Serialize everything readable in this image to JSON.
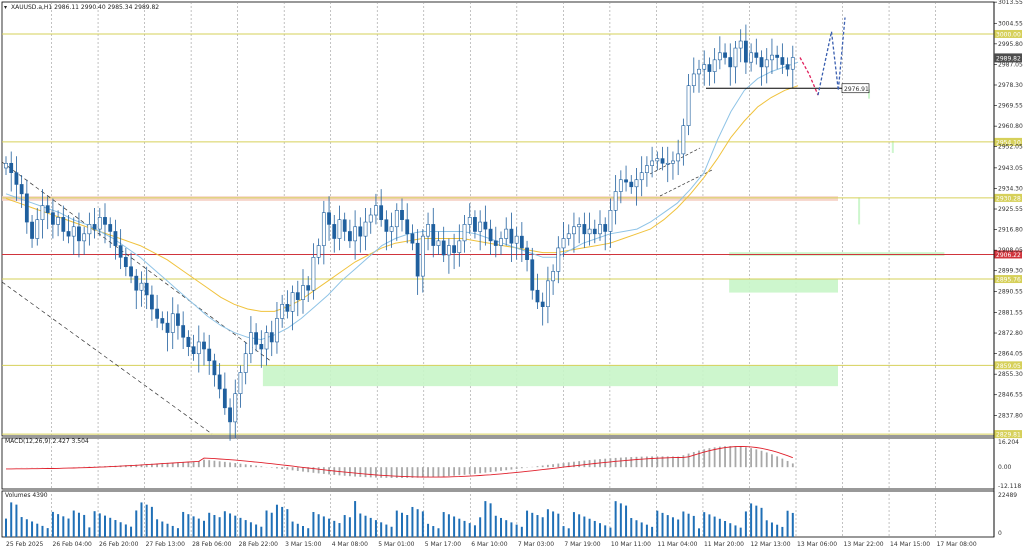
{
  "colors": {
    "background": "#ffffff",
    "candle": "#1f5f9e",
    "ma_fast": "#8ec3e6",
    "ma_slow": "#f0c23c",
    "zone_green": "#c8f5c8",
    "zone_pink": "#f5d0c4",
    "level_yellow": "#d6d05a",
    "level_red": "#d0343c",
    "macd_signal": "#e0202c",
    "macd_hist": "#a8a8a8",
    "volume": "#1f6fb6",
    "projection_red": "#e0205c",
    "projection_blue": "#3a5fb0",
    "price_tag_dark": "#4d4d4d"
  },
  "chart_data": {
    "type": "candlestick",
    "symbol_header": "XAUUSD.a,H1  2986.11 2990.40 2985.34 2989.82",
    "price_axis": {
      "ylim": [
        2829.0,
        3013.6
      ],
      "ticks": [
        "3013.55",
        "3004.55",
        "2995.80",
        "2987.05",
        "2978.30",
        "2969.55",
        "2960.80",
        "2952.05",
        "2943.05",
        "2934.30",
        "2925.55",
        "2916.80",
        "2908.05",
        "2899.30",
        "2890.55",
        "2881.55",
        "2872.80",
        "2864.05",
        "2855.30",
        "2846.55",
        "2837.80"
      ]
    },
    "time_labels": [
      "25 Feb 2025",
      "26 Feb 04:00",
      "26 Feb 20:00",
      "27 Feb 13:00",
      "28 Feb 06:00",
      "28 Feb 22:00",
      "3 Mar 15:00",
      "4 Mar 08:00",
      "5 Mar 01:00",
      "5 Mar 17:00",
      "6 Mar 10:00",
      "7 Mar 03:00",
      "7 Mar 19:00",
      "10 Mar 11:00",
      "11 Mar 04:00",
      "11 Mar 20:00",
      "12 Mar 13:00",
      "13 Mar 06:00",
      "13 Mar 22:00",
      "14 Mar 15:00",
      "17 Mar 08:00"
    ],
    "levels": [
      {
        "price": 3000.0,
        "label": "3000.00",
        "style": "yellow"
      },
      {
        "price": 2954.1,
        "label": "2954.10",
        "style": "yellow"
      },
      {
        "price": 2930.28,
        "label": "2930.28",
        "style": "yellow"
      },
      {
        "price": 2906.22,
        "label": "2906.22",
        "style": "red"
      },
      {
        "price": 2895.76,
        "label": "2895.76",
        "style": "yellow"
      },
      {
        "price": 2859.05,
        "label": "2859.05",
        "style": "yellow"
      },
      {
        "price": 2829.81,
        "label": "2829.81",
        "style": "yellow"
      }
    ],
    "current_price": "2989.82",
    "target_label": "2976.91",
    "target_price": 2976.91,
    "zones": [
      {
        "x_start": 0.0,
        "x_end": 1.0,
        "top": 2931.0,
        "bottom": 2929.0,
        "color": "pink"
      },
      {
        "x_start": 0.263,
        "x_end": 1.0,
        "top": 2859.0,
        "bottom": 2850.2,
        "color": "green"
      },
      {
        "x_start": 0.733,
        "x_end": 1.0,
        "top": 2896.0,
        "bottom": 2890.0,
        "color": "green"
      },
      {
        "x_start": 0.733,
        "x_end": 0.95,
        "top": 2907.2,
        "bottom": 2905.6,
        "color": "green"
      },
      {
        "x_start": 0.863,
        "x_end": 1.0,
        "top": 2930.5,
        "bottom": 2919.0,
        "color": "green"
      },
      {
        "x_start": 0.897,
        "x_end": 1.0,
        "top": 2954.5,
        "bottom": 2949.4,
        "color": "green"
      },
      {
        "x_start": 0.873,
        "x_end": 1.0,
        "top": 2976.5,
        "bottom": 2972.5,
        "color": "green"
      }
    ],
    "bar_count": 130,
    "close": [
      2945,
      2941,
      2936,
      2932,
      2920,
      2913,
      2921,
      2927,
      2924,
      2919,
      2922,
      2916,
      2914,
      2918,
      2912,
      2915,
      2919,
      2917,
      2922,
      2919,
      2916,
      2910,
      2905,
      2901,
      2897,
      2891,
      2894,
      2889,
      2883,
      2879,
      2877,
      2873,
      2881,
      2876,
      2871,
      2867,
      2864,
      2869,
      2866,
      2861,
      2855,
      2849,
      2841,
      2835,
      2847,
      2856,
      2864,
      2873,
      2868,
      2866,
      2873,
      2869,
      2879,
      2885,
      2882,
      2890,
      2887,
      2893,
      2891,
      2905,
      2910,
      2924,
      2919,
      2913,
      2921,
      2916,
      2912,
      2918,
      2914,
      2920,
      2923,
      2927,
      2921,
      2916,
      2918,
      2925,
      2921,
      2915,
      2911,
      2897,
      2914,
      2919,
      2910,
      2912,
      2906,
      2910,
      2907,
      2912,
      2919,
      2922,
      2916,
      2920,
      2917,
      2912,
      2910,
      2913,
      2917,
      2911,
      2914,
      2909,
      2904,
      2891,
      2886,
      2884,
      2895,
      2899,
      2909,
      2913,
      2915,
      2918,
      2919,
      2915,
      2917,
      2915,
      2919,
      2916,
      2925,
      2933,
      2938,
      2937,
      2935,
      2938,
      2941,
      2944,
      2946,
      2947,
      2945,
      2945,
      2946,
      2949
    ],
    "close_tail": [
      2961,
      2978,
      2983,
      2985,
      2987,
      2984,
      2989,
      2992,
      2990,
      2986,
      2994,
      2997,
      2988,
      2992,
      2990,
      2986,
      2989,
      2991,
      2990,
      2987,
      2985,
      2990
    ],
    "ma_fast": [
      2932,
      2930,
      2928,
      2926,
      2924,
      2921,
      2919,
      2916,
      2913,
      2909,
      2905,
      2900,
      2895,
      2890,
      2885,
      2880,
      2876,
      2873,
      2871,
      2870,
      2872,
      2875,
      2879,
      2884,
      2889,
      2895,
      2900,
      2905,
      2910,
      2913,
      2915,
      2916,
      2916,
      2916,
      2916,
      2915,
      2913,
      2911,
      2909,
      2907,
      2905,
      2905,
      2908,
      2911,
      2913,
      2915,
      2916,
      2917,
      2920,
      2924,
      2928,
      2934,
      2941,
      2955,
      2967,
      2976,
      2981,
      2984,
      2986,
      2988
    ],
    "ma_slow": [
      2930,
      2928,
      2926,
      2924,
      2922,
      2920,
      2918,
      2916,
      2914,
      2912,
      2910,
      2907,
      2904,
      2900,
      2896,
      2892,
      2888,
      2885,
      2883,
      2882,
      2882,
      2884,
      2887,
      2891,
      2895,
      2899,
      2903,
      2906,
      2909,
      2911,
      2912,
      2913,
      2913,
      2913,
      2913,
      2912,
      2911,
      2910,
      2909,
      2908,
      2907,
      2907,
      2908,
      2909,
      2910,
      2911,
      2913,
      2915,
      2917,
      2921,
      2926,
      2932,
      2939,
      2947,
      2956,
      2963,
      2969,
      2973,
      2976,
      2978
    ],
    "projection_red": [
      [
        2990,
        0
      ],
      [
        2983,
        0.5
      ],
      [
        2974,
        1
      ]
    ],
    "projection_blue": [
      [
        2974,
        0
      ],
      [
        2991,
        0.5
      ],
      [
        3000,
        1
      ]
    ],
    "macd": {
      "label": "MACD(12,26,9) 2.427 3.504",
      "axis_ticks": [
        "16.204",
        "0.00",
        "-12.118"
      ],
      "ylim": [
        -12.118,
        16.204
      ]
    },
    "volumes": {
      "label": "Volumes 4390",
      "axis_ticks": [
        "22489",
        "0"
      ],
      "ylim": [
        0,
        22489
      ]
    }
  }
}
